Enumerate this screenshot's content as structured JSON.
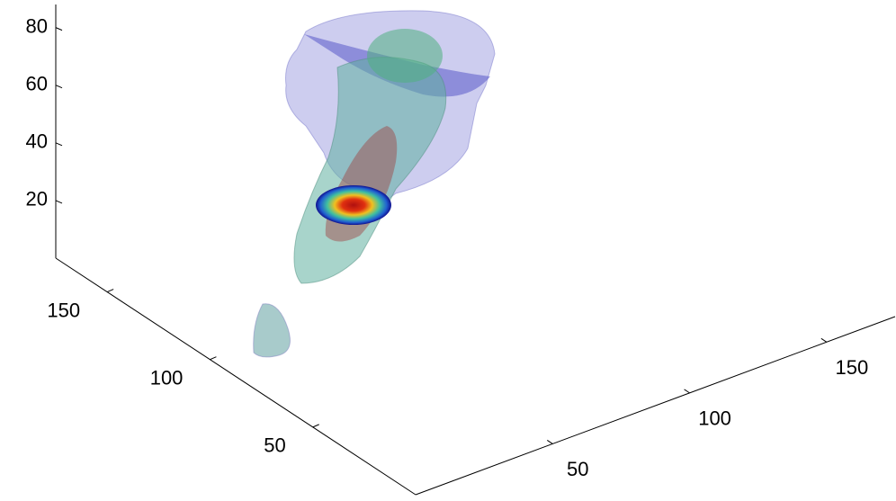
{
  "chart_data": {
    "type": "volume3d",
    "xlim": [
      0,
      175
    ],
    "ylim": [
      0,
      175
    ],
    "zlim": [
      0,
      88
    ],
    "xticks": [
      50,
      100,
      150
    ],
    "yticks": [
      50,
      100,
      150
    ],
    "zticks": [
      20,
      40,
      60,
      80
    ]
  }
}
